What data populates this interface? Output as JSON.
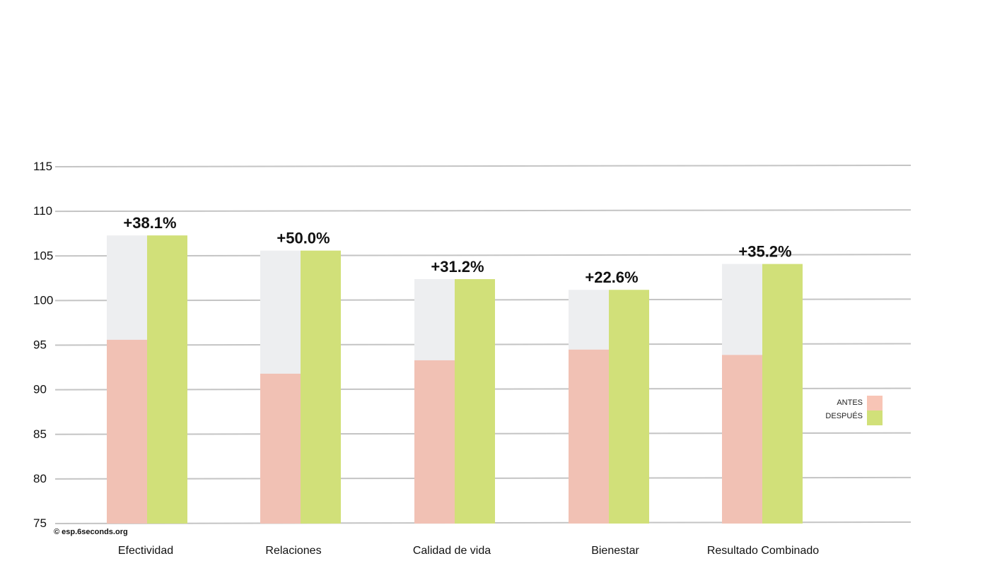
{
  "chart_data": {
    "type": "bar",
    "categories": [
      "Efectividad",
      "Relaciones",
      "Calidad de vida",
      "Bienestar",
      "Resultado Combinado"
    ],
    "series": [
      {
        "name": "ANTES",
        "values": [
          95.6,
          91.8,
          93.3,
          94.5,
          93.9
        ]
      },
      {
        "name": "DESPUÉS",
        "values": [
          107.3,
          105.6,
          102.4,
          101.2,
          104.1
        ]
      }
    ],
    "changes": [
      "+38.1%",
      "+50.0%",
      "+31.2%",
      "+22.6%",
      "+35.2%"
    ],
    "yticks": [
      "115",
      "110",
      "105",
      "100",
      "95",
      "90",
      "85",
      "80",
      "75"
    ],
    "ylim": [
      75,
      115
    ],
    "grid": true,
    "legend_position": "right",
    "colors": {
      "antes": "#f1c1b4",
      "despues": "#d1e079",
      "background_fill": "#edeef0",
      "grid": "#c4c4c4",
      "legend_antes": "#f8c5b6"
    },
    "credit": "© esp.6seconds.org"
  }
}
